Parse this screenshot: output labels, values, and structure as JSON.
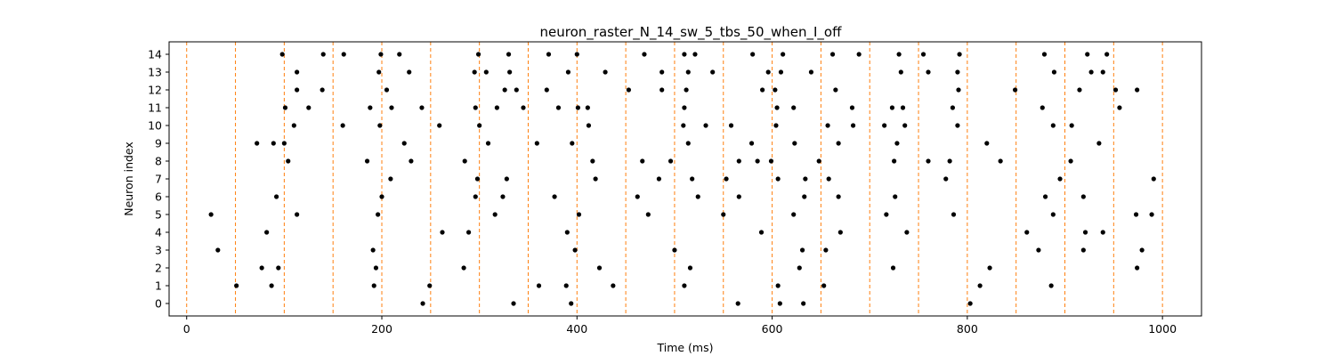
{
  "chart_data": {
    "type": "scatter",
    "title": "neuron_raster_N_14_sw_5_tbs_50_when_I_off",
    "xlabel": "Time (ms)",
    "ylabel": "Neuron index",
    "xlim": [
      -18,
      1040
    ],
    "ylim": [
      -0.7,
      14.7
    ],
    "xticks": [
      0,
      200,
      400,
      600,
      800,
      1000
    ],
    "yticks": [
      0,
      1,
      2,
      3,
      4,
      5,
      6,
      7,
      8,
      9,
      10,
      11,
      12,
      13,
      14
    ],
    "grid": false,
    "marker_color": "#000000",
    "vline_color": "#ff7f0e",
    "vlines": [
      0,
      50,
      100,
      150,
      200,
      250,
      300,
      350,
      400,
      450,
      500,
      550,
      600,
      650,
      700,
      750,
      800,
      850,
      900,
      950,
      1000
    ],
    "points": [
      {
        "neuron": 0,
        "times": [
          242,
          335,
          394,
          565,
          608,
          632,
          803
        ]
      },
      {
        "neuron": 1,
        "times": [
          51,
          87,
          192,
          249,
          361,
          389,
          437,
          510,
          606,
          653,
          813,
          886
        ]
      },
      {
        "neuron": 2,
        "times": [
          77,
          94,
          194,
          284,
          423,
          516,
          628,
          724,
          823,
          974
        ]
      },
      {
        "neuron": 3,
        "times": [
          32,
          191,
          398,
          500,
          631,
          655,
          873,
          919,
          979
        ]
      },
      {
        "neuron": 4,
        "times": [
          82,
          262,
          289,
          390,
          589,
          670,
          738,
          861,
          921,
          939
        ]
      },
      {
        "neuron": 5,
        "times": [
          25,
          113,
          196,
          316,
          402,
          473,
          550,
          622,
          717,
          786,
          888,
          973,
          989
        ]
      },
      {
        "neuron": 6,
        "times": [
          92,
          200,
          296,
          324,
          377,
          462,
          524,
          566,
          633,
          668,
          726,
          880,
          919
        ]
      },
      {
        "neuron": 7,
        "times": [
          209,
          298,
          328,
          419,
          484,
          518,
          553,
          606,
          634,
          658,
          778,
          895,
          991
        ]
      },
      {
        "neuron": 8,
        "times": [
          104,
          185,
          230,
          285,
          416,
          467,
          496,
          566,
          585,
          599,
          648,
          725,
          760,
          782,
          834,
          906
        ]
      },
      {
        "neuron": 9,
        "times": [
          72,
          89,
          100,
          223,
          309,
          359,
          395,
          514,
          579,
          623,
          668,
          728,
          820,
          935
        ]
      },
      {
        "neuron": 10,
        "times": [
          110,
          160,
          198,
          259,
          300,
          412,
          509,
          532,
          558,
          604,
          657,
          683,
          715,
          736,
          790,
          888,
          907
        ]
      },
      {
        "neuron": 11,
        "times": [
          101,
          125,
          188,
          210,
          241,
          296,
          318,
          345,
          381,
          401,
          411,
          510,
          605,
          622,
          682,
          723,
          734,
          785,
          877,
          956
        ]
      },
      {
        "neuron": 12,
        "times": [
          113,
          139,
          205,
          326,
          338,
          369,
          453,
          487,
          512,
          590,
          603,
          665,
          791,
          849,
          915,
          952,
          974
        ]
      },
      {
        "neuron": 13,
        "times": [
          113,
          197,
          228,
          295,
          307,
          331,
          391,
          429,
          487,
          514,
          539,
          596,
          609,
          640,
          732,
          760,
          790,
          889,
          927,
          939
        ]
      },
      {
        "neuron": 14,
        "times": [
          98,
          140,
          161,
          199,
          218,
          299,
          330,
          371,
          400,
          469,
          510,
          521,
          580,
          611,
          662,
          689,
          730,
          755,
          792,
          879,
          923,
          943
        ]
      }
    ]
  }
}
